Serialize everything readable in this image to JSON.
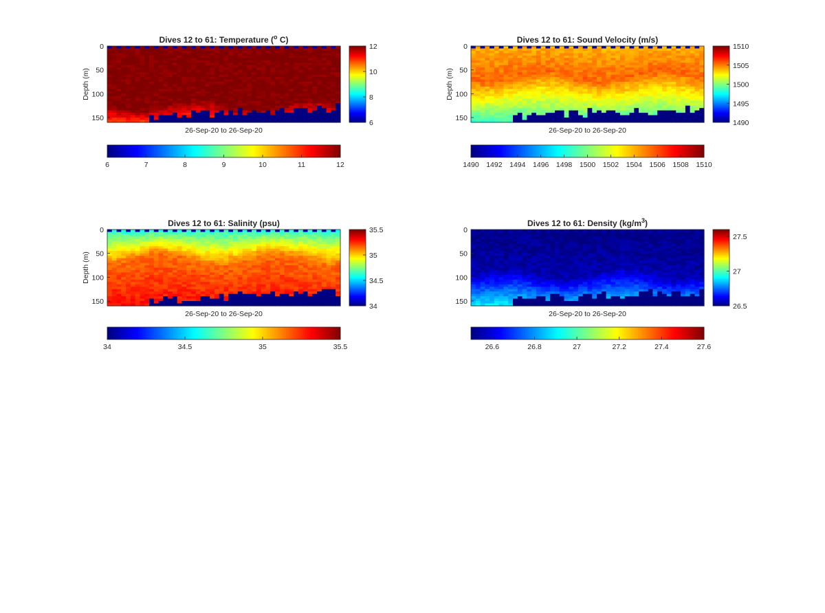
{
  "page": {
    "background": "#ffffff"
  },
  "chart_data": [
    {
      "type": "heatmap",
      "title": "Dives 12 to 61: Temperature (",
      "title_sup": "o",
      "title_suffix": " C)",
      "ylabel": "Depth (m)",
      "xlabel": "26-Sep-20 to 26-Sep-20",
      "x_dives": [
        12,
        61
      ],
      "ylim": [
        160,
        0
      ],
      "yticks": [
        0,
        50,
        100,
        150
      ],
      "clim": [
        6,
        12
      ],
      "colorbar_side_ticks": [
        "6",
        "8",
        "10",
        "12"
      ],
      "colorbar_bottom_ticks": [
        "6",
        "7",
        "8",
        "9",
        "10",
        "11",
        "12"
      ],
      "colormap": "jet",
      "profile": {
        "surface": 12,
        "mid_depth": 120,
        "mid_value": 12,
        "deep_value": 10.8
      },
      "seafloor_depth_start": 160,
      "seafloor_depth_end": 140
    },
    {
      "type": "heatmap",
      "title": "Dives 12 to 61: Sound Velocity (m/s)",
      "title_sup": "",
      "title_suffix": "",
      "ylabel": "Depth (m)",
      "xlabel": "26-Sep-20 to 26-Sep-20",
      "x_dives": [
        12,
        61
      ],
      "ylim": [
        160,
        0
      ],
      "yticks": [
        0,
        50,
        100,
        150
      ],
      "clim": [
        1490,
        1510
      ],
      "colorbar_side_ticks": [
        "1490",
        "1495",
        "1500",
        "1505",
        "1510"
      ],
      "colorbar_bottom_ticks": [
        "1490",
        "1492",
        "1494",
        "1496",
        "1498",
        "1500",
        "1502",
        "1504",
        "1506",
        "1508",
        "1510"
      ],
      "colormap": "jet",
      "profile": {
        "surface": 1504,
        "mid_depth": 60,
        "mid_value": 1505.5,
        "deep_value": 1498.5
      },
      "seafloor_depth_start": 160,
      "seafloor_depth_end": 140
    },
    {
      "type": "heatmap",
      "title": "Dives 12 to 61: Salinity (psu)",
      "title_sup": "",
      "title_suffix": "",
      "ylabel": "Depth (m)",
      "xlabel": "26-Sep-20 to 26-Sep-20",
      "x_dives": [
        12,
        61
      ],
      "ylim": [
        160,
        0
      ],
      "yticks": [
        0,
        50,
        100,
        150
      ],
      "clim": [
        34,
        35.5
      ],
      "colorbar_side_ticks": [
        "34",
        "34.5",
        "35",
        "35.5"
      ],
      "colorbar_bottom_ticks": [
        "34",
        "34.5",
        "35",
        "35.5"
      ],
      "colormap": "jet",
      "profile": {
        "surface": 34.6,
        "mid_depth": 60,
        "mid_value": 35.15,
        "deep_value": 35.3
      },
      "seafloor_depth_start": 160,
      "seafloor_depth_end": 140
    },
    {
      "type": "heatmap",
      "title": "Dives 12 to 61: Density (kg/m",
      "title_sup": "3",
      "title_suffix": ")",
      "ylabel": "",
      "xlabel": "26-Sep-20 to 26-Sep-20",
      "x_dives": [
        12,
        61
      ],
      "ylim": [
        160,
        0
      ],
      "yticks": [
        0,
        50,
        100,
        150
      ],
      "clim": [
        26.5,
        27.6
      ],
      "colorbar_side_ticks": [
        "26.5",
        "27",
        "27.5"
      ],
      "colorbar_bottom_ticks": [
        "26.6",
        "26.8",
        "27",
        "27.2",
        "27.4",
        "27.6"
      ],
      "colormap": "jet",
      "profile": {
        "surface": 26.5,
        "mid_depth": 90,
        "mid_value": 26.55,
        "deep_value": 26.9
      },
      "seafloor_depth_start": 160,
      "seafloor_depth_end": 140
    }
  ]
}
